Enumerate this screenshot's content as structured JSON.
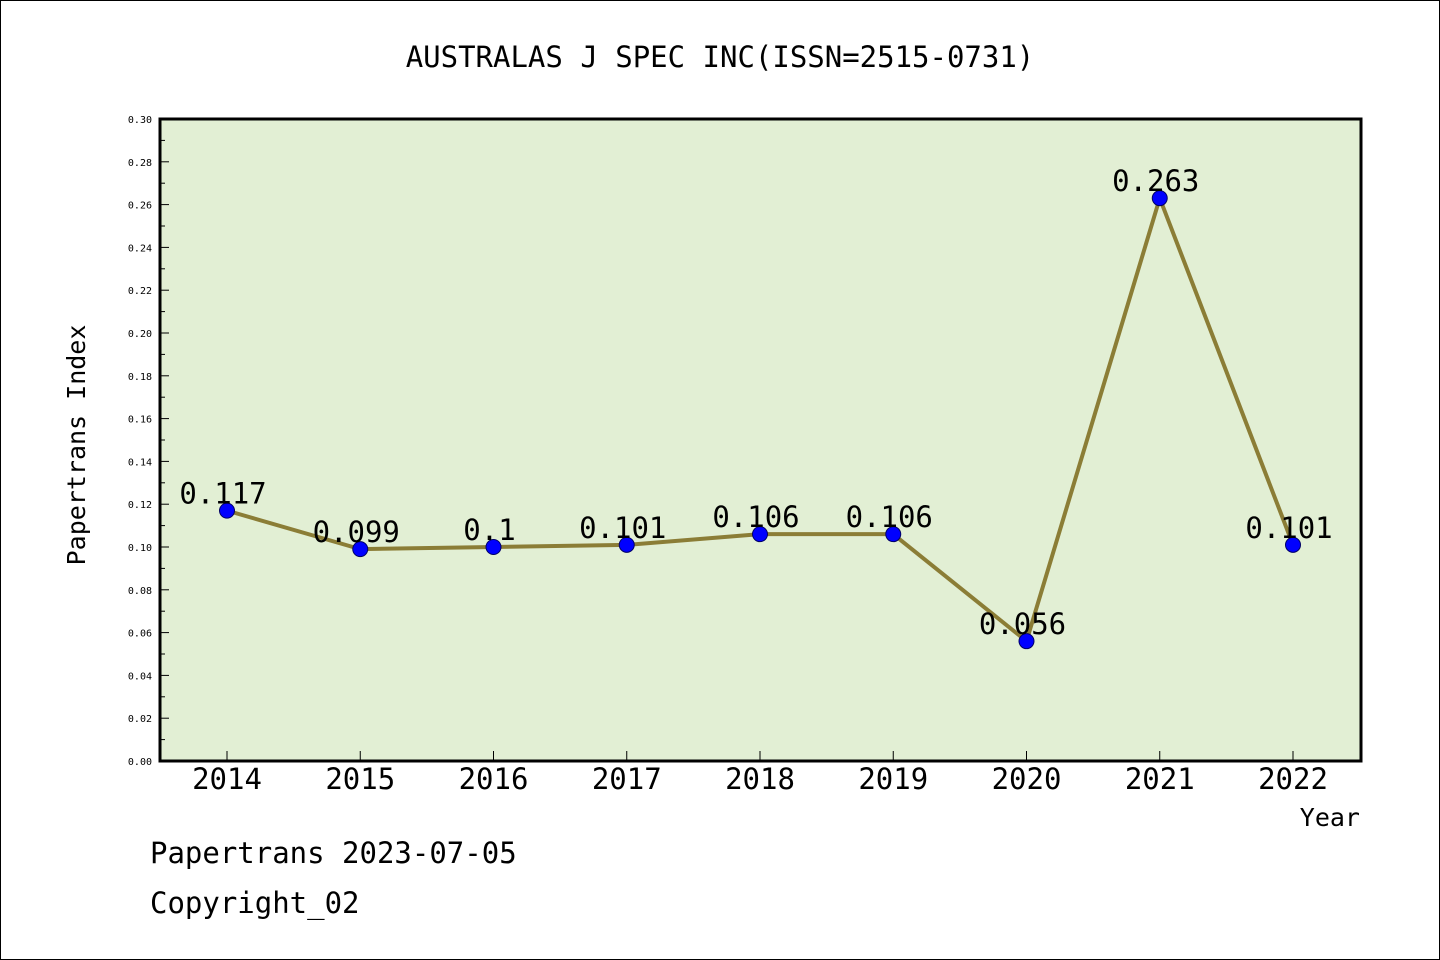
{
  "colors": {
    "background": "#ffffff",
    "plot_background": "#e2efd4",
    "line": "#8b7d36",
    "marker": "#0000ff",
    "axis": "#000000",
    "text": "#000000"
  },
  "chart_data": {
    "type": "line",
    "title": "AUSTRALAS J SPEC INC(ISSN=2515-0731)",
    "xlabel": "Year",
    "ylabel": "Papertrans Index",
    "categories": [
      "2014",
      "2015",
      "2016",
      "2017",
      "2018",
      "2019",
      "2020",
      "2021",
      "2022"
    ],
    "values": [
      0.117,
      0.099,
      0.1,
      0.101,
      0.106,
      0.106,
      0.056,
      0.263,
      0.101
    ],
    "data_labels": [
      "0.117",
      "0.099",
      "0.1",
      "0.101",
      "0.106",
      "0.106",
      "0.056",
      "0.263",
      "0.101"
    ],
    "ylim": [
      0,
      0.3
    ],
    "yticks": [
      "0.00",
      "0.02",
      "0.04",
      "0.06",
      "0.08",
      "0.10",
      "0.12",
      "0.14",
      "0.16",
      "0.18",
      "0.20",
      "0.22",
      "0.24",
      "0.26",
      "0.28",
      "0.30"
    ],
    "grid": false,
    "legend": "none"
  },
  "footer": {
    "date": "Papertrans 2023-07-05",
    "copyright": "Copyright_02"
  }
}
